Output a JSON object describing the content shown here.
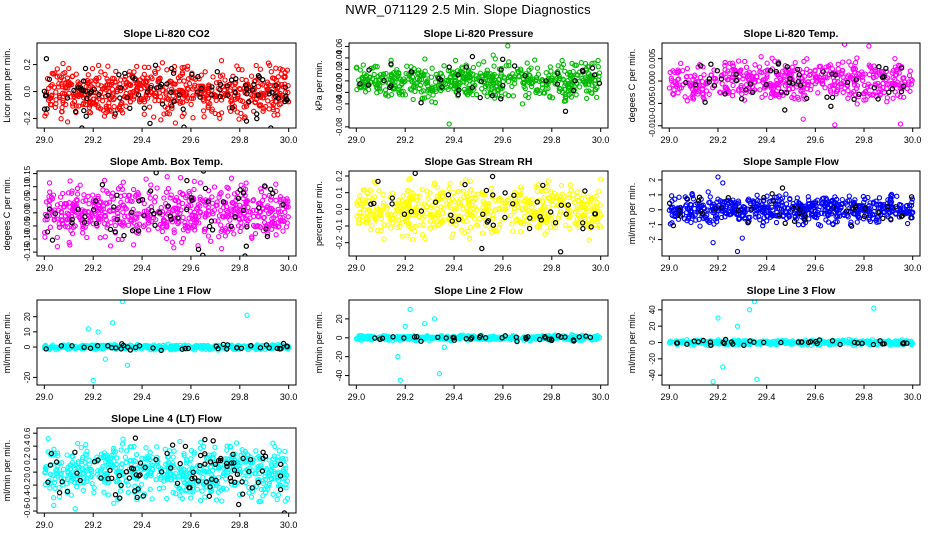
{
  "page_title": "NWR_071129  2.5 Min. Slope Diagnostics",
  "colors": {
    "point_color_black": "#000000"
  },
  "chart_data": [
    {
      "id": "co2",
      "type": "scatter",
      "title": "Slope Li-820 CO2",
      "ylabel": "Licor ppm per min.",
      "color": "#ff0000",
      "xlim": [
        28.97,
        30.03
      ],
      "ylim": [
        -0.27,
        0.36
      ],
      "xticks": [
        29.0,
        29.2,
        29.4,
        29.6,
        29.8,
        30.0
      ],
      "yticks": [
        {
          "v": -0.2,
          "l": "-0.2"
        },
        {
          "v": 0.0,
          "l": "0.0"
        },
        {
          "v": 0.2,
          "l": "0.2"
        }
      ],
      "n": 620,
      "spread": 0.09,
      "black_n": 95,
      "outliers": []
    },
    {
      "id": "pressure",
      "type": "scatter",
      "title": "Slope Li-820 Pressure",
      "ylabel": "kPa per min.",
      "color": "#00bb00",
      "xlim": [
        28.97,
        30.03
      ],
      "ylim": [
        -0.082,
        0.066
      ],
      "xticks": [
        29.0,
        29.2,
        29.4,
        29.6,
        29.8,
        30.0
      ],
      "yticks": [
        {
          "v": -0.08,
          "l": "-0.08"
        },
        {
          "v": -0.04,
          "l": "-0.04"
        },
        {
          "v": -0.02,
          "l": "-0.02"
        },
        {
          "v": 0.0,
          "l": "0.00"
        },
        {
          "v": 0.02,
          "l": "0.02"
        },
        {
          "v": 0.04,
          "l": "0.04"
        },
        {
          "v": 0.06,
          "l": "0.06"
        }
      ],
      "n": 560,
      "spread": 0.015,
      "black_n": 40,
      "outliers": [
        [
          29.62,
          0.061
        ],
        [
          29.56,
          0.045
        ],
        [
          29.38,
          -0.075
        ],
        [
          29.68,
          -0.04
        ]
      ]
    },
    {
      "id": "temp",
      "type": "scatter",
      "title": "Slope Li-820 Temp.",
      "ylabel": "degees C per min.",
      "color": "#ff00ff",
      "xlim": [
        28.97,
        30.03
      ],
      "ylim": [
        -0.0105,
        0.0085
      ],
      "xticks": [
        29.0,
        29.2,
        29.4,
        29.6,
        29.8,
        30.0
      ],
      "yticks": [
        {
          "v": -0.01,
          "l": "-0.010"
        },
        {
          "v": -0.005,
          "l": "-0.005"
        },
        {
          "v": 0.0,
          "l": "0.000"
        },
        {
          "v": 0.005,
          "l": "0.005"
        }
      ],
      "n": 520,
      "spread": 0.0022,
      "black_n": 55,
      "outliers": [
        [
          29.68,
          -0.0098
        ],
        [
          29.95,
          -0.0096
        ],
        [
          29.55,
          -0.0085
        ],
        [
          29.82,
          0.0078
        ],
        [
          29.72,
          0.0082
        ]
      ]
    },
    {
      "id": "ambbox",
      "type": "scatter",
      "title": "Slope Amb. Box Temp.",
      "ylabel": "degees C per min.",
      "color": "#ff00ff",
      "xlim": [
        28.97,
        30.03
      ],
      "ylim": [
        -0.165,
        0.16
      ],
      "xticks": [
        29.0,
        29.2,
        29.4,
        29.6,
        29.8,
        30.0
      ],
      "yticks": [
        {
          "v": -0.15,
          "l": "-0.15"
        },
        {
          "v": -0.1,
          "l": "-0.10"
        },
        {
          "v": -0.05,
          "l": "-0.05"
        },
        {
          "v": 0.0,
          "l": "0.00"
        },
        {
          "v": 0.05,
          "l": "0.05"
        },
        {
          "v": 0.1,
          "l": "0.10"
        },
        {
          "v": 0.15,
          "l": "0.15"
        }
      ],
      "n": 600,
      "spread": 0.055,
      "black_n": 65,
      "outliers": []
    },
    {
      "id": "rh",
      "type": "scatter",
      "title": "Slope Gas Stream RH",
      "ylabel": "percent per min.",
      "color": "#ffff00",
      "xlim": [
        28.97,
        30.03
      ],
      "ylim": [
        -0.28,
        0.23
      ],
      "xticks": [
        29.0,
        29.2,
        29.4,
        29.6,
        29.8,
        30.0
      ],
      "yticks": [
        {
          "v": -0.2,
          "l": "-0.2"
        },
        {
          "v": -0.1,
          "l": "-0.1"
        },
        {
          "v": 0.0,
          "l": "0.0"
        },
        {
          "v": 0.1,
          "l": "0.1"
        },
        {
          "v": 0.2,
          "l": "0.2"
        }
      ],
      "n": 560,
      "spread": 0.075,
      "black_n": 45,
      "outliers": [
        [
          30.0,
          0.18
        ]
      ]
    },
    {
      "id": "sampleflow",
      "type": "scatter",
      "title": "Slope Sample Flow",
      "ylabel": "ml/min per min.",
      "color": "#0000ff",
      "xlim": [
        28.97,
        30.03
      ],
      "ylim": [
        -3.1,
        2.6
      ],
      "xticks": [
        29.0,
        29.2,
        29.4,
        29.6,
        29.8,
        30.0
      ],
      "yticks": [
        {
          "v": -2,
          "l": "-2"
        },
        {
          "v": -1,
          "l": "-1"
        },
        {
          "v": 0,
          "l": "0"
        },
        {
          "v": 1,
          "l": "1"
        },
        {
          "v": 2,
          "l": "2"
        }
      ],
      "n": 620,
      "spread": 0.45,
      "black_n": 45,
      "outliers": [
        [
          29.2,
          2.2
        ],
        [
          29.22,
          1.8
        ],
        [
          29.28,
          -2.8
        ],
        [
          29.18,
          -2.2
        ],
        [
          29.16,
          1.2
        ],
        [
          29.3,
          -1.9
        ]
      ]
    },
    {
      "id": "line1",
      "type": "scatter",
      "title": "Slope Line 1 Flow",
      "ylabel": "ml/min per min.",
      "color": "#00ffff",
      "xlim": [
        28.97,
        30.03
      ],
      "ylim": [
        -25,
        31
      ],
      "xticks": [
        29.0,
        29.2,
        29.4,
        29.6,
        29.8,
        30.0
      ],
      "yticks": [
        {
          "v": -20,
          "l": "-20"
        },
        {
          "v": 0,
          "l": "0"
        },
        {
          "v": 10,
          "l": "10"
        },
        {
          "v": 20,
          "l": "20"
        }
      ],
      "n": 420,
      "spread": 0.8,
      "black_n": 40,
      "outliers": [
        [
          29.32,
          30
        ],
        [
          29.2,
          -22
        ],
        [
          29.28,
          16
        ],
        [
          29.22,
          10
        ],
        [
          29.25,
          -8
        ],
        [
          29.18,
          12
        ],
        [
          29.83,
          21
        ],
        [
          29.34,
          -12
        ]
      ]
    },
    {
      "id": "line2",
      "type": "scatter",
      "title": "Slope Line 2 Flow",
      "ylabel": "ml/min per min.",
      "color": "#00ffff",
      "xlim": [
        28.97,
        30.03
      ],
      "ylim": [
        -50,
        40
      ],
      "xticks": [
        29.0,
        29.2,
        29.4,
        29.6,
        29.8,
        30.0
      ],
      "yticks": [
        {
          "v": -40,
          "l": "-40"
        },
        {
          "v": -20,
          "l": "-20"
        },
        {
          "v": 0,
          "l": "0"
        },
        {
          "v": 20,
          "l": "20"
        }
      ],
      "n": 420,
      "spread": 1.2,
      "black_n": 40,
      "outliers": [
        [
          29.18,
          -45
        ],
        [
          29.22,
          30
        ],
        [
          29.32,
          20
        ],
        [
          29.34,
          -38
        ],
        [
          29.17,
          -20
        ],
        [
          29.28,
          15
        ],
        [
          29.2,
          12
        ],
        [
          29.36,
          -10
        ]
      ]
    },
    {
      "id": "line3",
      "type": "scatter",
      "title": "Slope Line 3 Flow",
      "ylabel": "ml/min per min.",
      "color": "#00ffff",
      "xlim": [
        28.97,
        30.03
      ],
      "ylim": [
        -52,
        52
      ],
      "xticks": [
        29.0,
        29.2,
        29.4,
        29.6,
        29.8,
        30.0
      ],
      "yticks": [
        {
          "v": -40,
          "l": "-40"
        },
        {
          "v": -20,
          "l": "-20"
        },
        {
          "v": 0,
          "l": "0"
        },
        {
          "v": 20,
          "l": "20"
        },
        {
          "v": 40,
          "l": "40"
        }
      ],
      "n": 440,
      "spread": 1.5,
      "black_n": 40,
      "outliers": [
        [
          29.18,
          -48
        ],
        [
          29.2,
          30
        ],
        [
          29.35,
          50
        ],
        [
          29.36,
          -45
        ],
        [
          29.33,
          40
        ],
        [
          29.22,
          -30
        ],
        [
          29.84,
          42
        ],
        [
          29.28,
          20
        ]
      ]
    },
    {
      "id": "line4",
      "type": "scatter",
      "title": "Slope Line 4 (LT) Flow",
      "ylabel": "ml/min per min.",
      "color": "#00ffff",
      "xlim": [
        28.97,
        30.03
      ],
      "ylim": [
        -0.63,
        0.68
      ],
      "xticks": [
        29.0,
        29.2,
        29.4,
        29.6,
        29.8,
        30.0
      ],
      "yticks": [
        {
          "v": -0.6,
          "l": "-0.6"
        },
        {
          "v": -0.4,
          "l": "-0.4"
        },
        {
          "v": -0.2,
          "l": "-0.2"
        },
        {
          "v": 0.0,
          "l": "0.0"
        },
        {
          "v": 0.2,
          "l": "0.2"
        },
        {
          "v": 0.4,
          "l": "0.4"
        },
        {
          "v": 0.6,
          "l": "0.6"
        }
      ],
      "n": 600,
      "spread": 0.2,
      "black_n": 90,
      "outliers": []
    }
  ]
}
